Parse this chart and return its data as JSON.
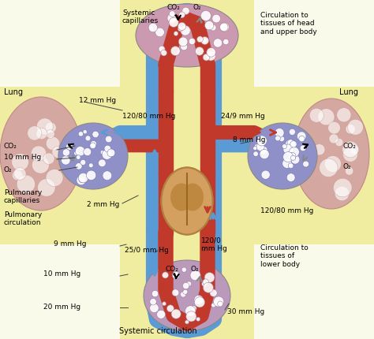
{
  "bg_color": "#fafaea",
  "yellow_panel_color": "#f0eda0",
  "blue_color": "#5b9bd5",
  "red_color": "#c0392b",
  "pink_lung": "#d4a8a0",
  "labels": {
    "systemic_cap": "Systemic\ncapillaries",
    "co2_top": "CO₂",
    "o2_top": "O₂",
    "lung_left": "Lung",
    "lung_right": "Lung",
    "pulm_cap": "Pulmonary\ncapillaries",
    "pulm_circ": "Pulmonary\ncirculation",
    "systemic_circ": "Systemic circulation",
    "circ_head": "Circulation to\ntissues of head\nand upper body",
    "circ_lower": "Circulation to\ntissues of\nlower body",
    "p_12": "12 mm Hg",
    "p_10": "10 mm Hg",
    "p_2": "2 mm Hg",
    "p_9": "9 mm Hg",
    "p_10b": "10 mm Hg",
    "p_20": "20 mm Hg",
    "p_120_80": "120/80 mm Hg",
    "p_24_9": "24/9 mm Hg",
    "p_8": "8 mm Hg",
    "p_120_80r": "120/80 mm Hg",
    "p_25_0": "25/0 mm Hg",
    "p_120_0": "120/0\nmm Hg",
    "p_30": "30 mm Hg",
    "co2": "CO₂",
    "o2": "O₂"
  },
  "figsize": [
    4.74,
    4.3
  ],
  "dpi": 100
}
